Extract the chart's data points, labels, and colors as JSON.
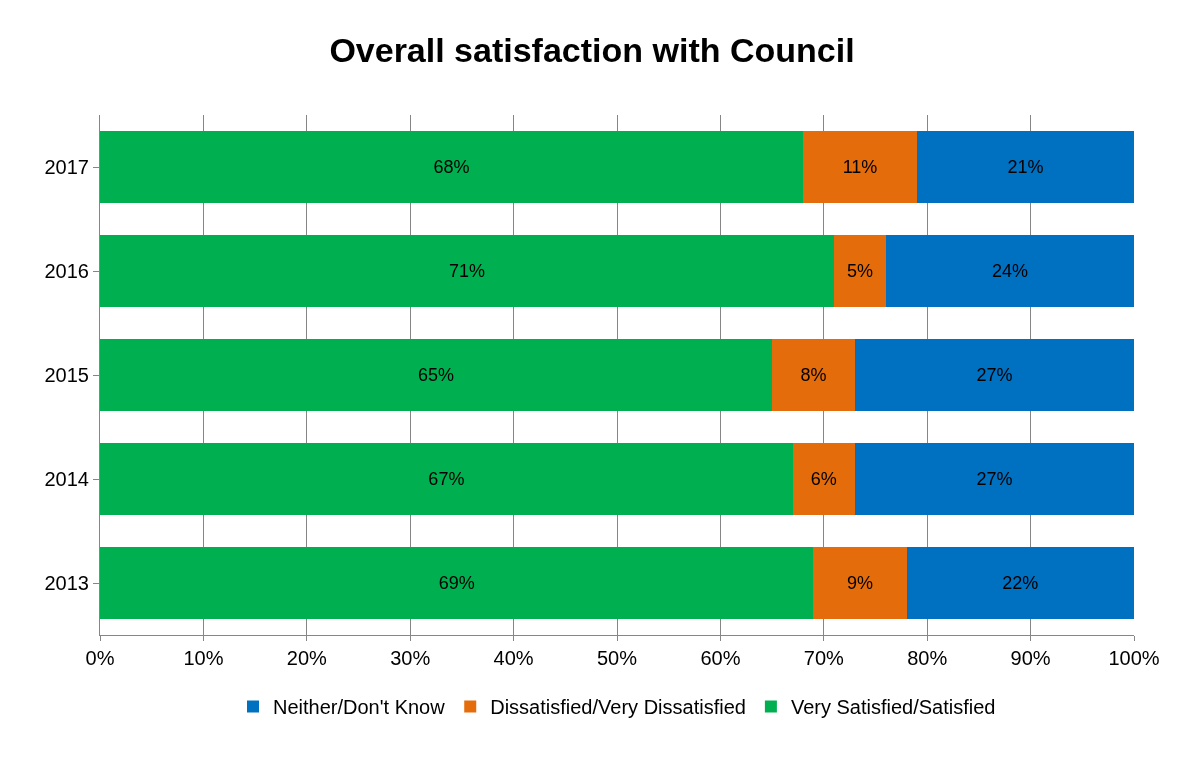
{
  "chart_data": {
    "type": "bar",
    "orientation": "horizontal",
    "stacked": true,
    "title": "Overall satisfaction with Council",
    "categories": [
      "2017",
      "2016",
      "2015",
      "2014",
      "2013"
    ],
    "series": [
      {
        "name": "Very Satisfied/Satisfied",
        "color": "#00b050",
        "values": [
          68,
          71,
          65,
          67,
          69
        ],
        "value_labels": [
          "68%",
          "71%",
          "65%",
          "67%",
          "69%"
        ]
      },
      {
        "name": "Dissatisfied/Very Dissatisfied",
        "color": "#e46c0a",
        "values": [
          11,
          5,
          8,
          6,
          9
        ],
        "value_labels": [
          "11%",
          "5%",
          "8%",
          "6%",
          "9%"
        ]
      },
      {
        "name": "Neither/Don't Know",
        "color": "#0070c0",
        "values": [
          21,
          24,
          27,
          27,
          22
        ],
        "value_labels": [
          "21%",
          "24%",
          "27%",
          "27%",
          "22%"
        ]
      }
    ],
    "xlim": [
      0,
      100
    ],
    "xticks": [
      {
        "value": 0,
        "label": "0%"
      },
      {
        "value": 10,
        "label": "10%"
      },
      {
        "value": 20,
        "label": "20%"
      },
      {
        "value": 30,
        "label": "30%"
      },
      {
        "value": 40,
        "label": "40%"
      },
      {
        "value": 50,
        "label": "50%"
      },
      {
        "value": 60,
        "label": "60%"
      },
      {
        "value": 70,
        "label": "70%"
      },
      {
        "value": 80,
        "label": "80%"
      },
      {
        "value": 90,
        "label": "90%"
      },
      {
        "value": 100,
        "label": "100%"
      }
    ],
    "grid": "x",
    "legend": "bottom"
  }
}
